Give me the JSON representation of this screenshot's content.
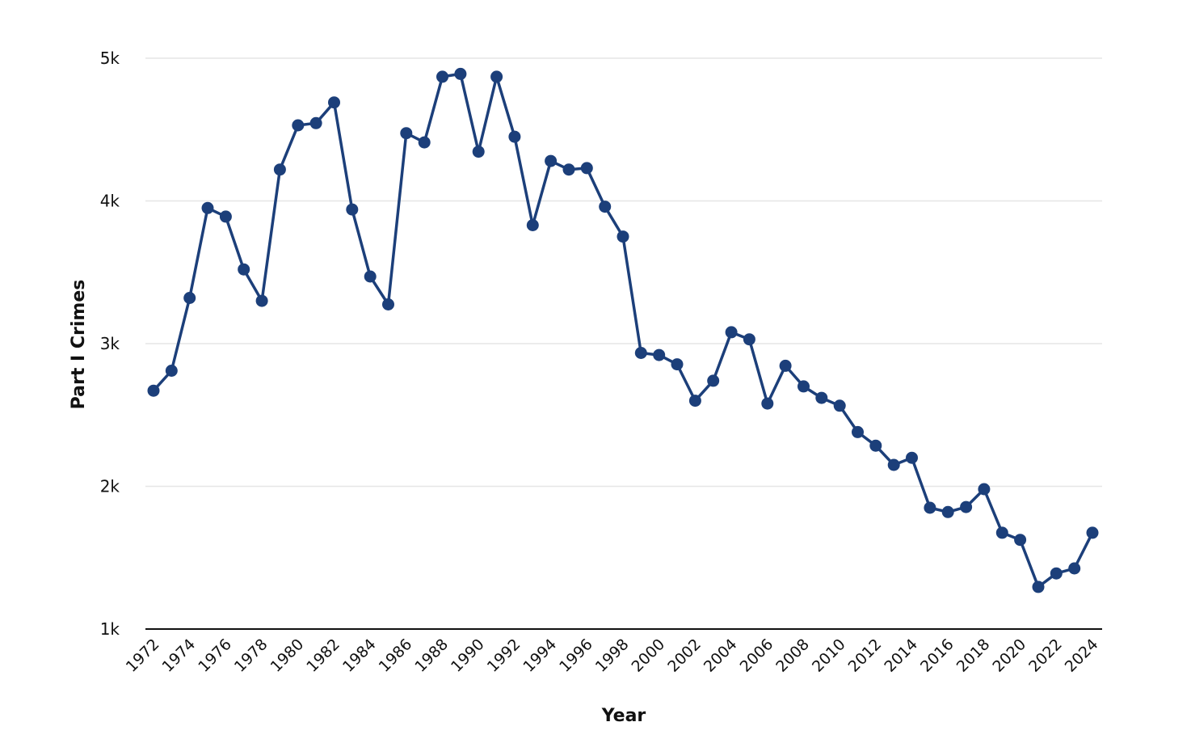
{
  "chart_data": {
    "type": "line",
    "title": "",
    "xlabel": "Year",
    "ylabel": "Part I Crimes",
    "ylim": [
      1000,
      5000
    ],
    "yticks": [
      1000,
      2000,
      3000,
      4000,
      5000
    ],
    "ytick_labels": [
      "1k",
      "2k",
      "3k",
      "4k",
      "5k"
    ],
    "xlim": [
      1972,
      2024
    ],
    "xticks": [
      "1972",
      "1974",
      "1976",
      "1978",
      "1980",
      "1982",
      "1984",
      "1986",
      "1988",
      "1990",
      "1992",
      "1994",
      "1996",
      "1998",
      "2000",
      "2002",
      "2004",
      "2006",
      "2008",
      "2010",
      "2012",
      "2014",
      "2016",
      "2018",
      "2020",
      "2022",
      "2024"
    ],
    "grid": true,
    "legend": "none",
    "color": "#1c3f7a",
    "x": [
      1972,
      1973,
      1974,
      1975,
      1976,
      1977,
      1978,
      1979,
      1980,
      1981,
      1982,
      1983,
      1984,
      1985,
      1986,
      1987,
      1988,
      1989,
      1990,
      1991,
      1992,
      1993,
      1994,
      1995,
      1996,
      1997,
      1998,
      1999,
      2000,
      2001,
      2002,
      2003,
      2004,
      2005,
      2006,
      2007,
      2008,
      2009,
      2010,
      2011,
      2012,
      2013,
      2014,
      2015,
      2016,
      2017,
      2018,
      2019,
      2020,
      2021,
      2022,
      2023,
      2024
    ],
    "series": [
      {
        "values": [
          2670,
          2810,
          3320,
          3950,
          3890,
          3520,
          3300,
          4220,
          4530,
          4545,
          4690,
          3940,
          3470,
          3275,
          4475,
          4410,
          4870,
          4890,
          4345,
          4870,
          4450,
          3830,
          4280,
          4220,
          4230,
          3960,
          3750,
          2935,
          2920,
          2855,
          2600,
          2740,
          3080,
          3030,
          2580,
          2845,
          2700,
          2620,
          2565,
          2380,
          2285,
          2150,
          2200,
          1850,
          1820,
          1855,
          1980,
          1675,
          1625,
          1295,
          1390,
          1425,
          1675
        ]
      }
    ]
  }
}
